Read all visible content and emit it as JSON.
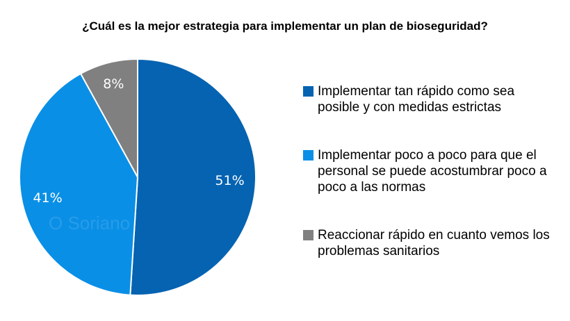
{
  "chart_data": {
    "type": "pie",
    "title": "¿Cuál es la mejor estrategia para implementar un plan de bioseguridad?",
    "slices": [
      {
        "label": "Implementar tan rápido como sea posible y con medidas estrictas",
        "value": 51,
        "data_label": "51%",
        "color": "#0563B1"
      },
      {
        "label": "Implementar poco a poco para que el personal se puede acostumbrar poco a poco a las normas",
        "value": 41,
        "data_label": "41%",
        "color": "#0A8FE6"
      },
      {
        "label": "Reaccionar rápido en cuanto vemos los problemas sanitarios",
        "value": 8,
        "data_label": "8%",
        "color": "#808080"
      }
    ],
    "legend_position": "right"
  },
  "watermark": "O Soriano"
}
